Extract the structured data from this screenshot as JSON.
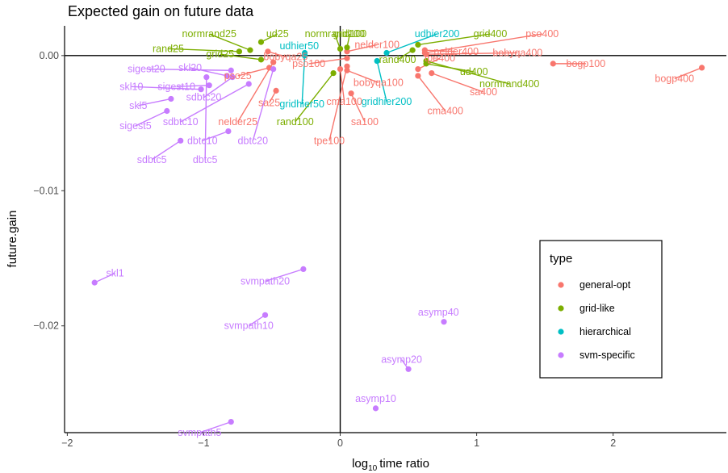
{
  "chart_data": {
    "type": "scatter",
    "title": "Expected gain on future data",
    "xlabel": "time ratio",
    "xlabel_prefix": "log",
    "xlabel_subscript": "10",
    "ylabel": "future.gain",
    "xlim": [
      -2.02,
      2.83
    ],
    "ylim": [
      -0.0279,
      0.0022
    ],
    "x_ticks": [
      -2,
      -1,
      0,
      1,
      2
    ],
    "x_tick_labels": [
      "−2",
      "−1",
      "0",
      "1",
      "2"
    ],
    "y_ticks": [
      0.0,
      -0.01,
      -0.02
    ],
    "y_tick_labels": [
      "0.00",
      "−0.01",
      "−0.02"
    ],
    "reference_lines": {
      "x": 0,
      "y": 0
    },
    "colors": {
      "general-opt": "#F8766D",
      "grid-like": "#7CAE00",
      "hierarchical": "#00BFC4",
      "svm-specific": "#C77CFF"
    },
    "legend": {
      "title": "type",
      "position": "right",
      "entries": [
        "general-opt",
        "grid-like",
        "hierarchical",
        "svm-specific"
      ]
    },
    "points": [
      {
        "label": "bogp400",
        "type": "general-opt",
        "x": 2.65,
        "y": -0.0009,
        "lx": 2.45,
        "ly": -0.0017
      },
      {
        "label": "bogp100",
        "type": "general-opt",
        "x": 1.56,
        "y": -0.0006,
        "lx": 1.8,
        "ly": -0.0006
      },
      {
        "label": "pso400",
        "type": "general-opt",
        "x": 0.62,
        "y": 0.0002,
        "lx": 1.48,
        "ly": 0.0016
      },
      {
        "label": "bobyqa400",
        "type": "general-opt",
        "x": 0.63,
        "y": 0.0001,
        "lx": 1.3,
        "ly": 0.0002
      },
      {
        "label": "nelder400",
        "type": "general-opt",
        "x": 0.62,
        "y": 0.0004,
        "lx": 0.85,
        "ly": 0.0003
      },
      {
        "label": "tpe400",
        "type": "general-opt",
        "x": 0.57,
        "y": -0.001,
        "lx": 0.73,
        "ly": -0.0002
      },
      {
        "label": "sa400",
        "type": "general-opt",
        "x": 0.67,
        "y": -0.0013,
        "lx": 1.05,
        "ly": -0.0027
      },
      {
        "label": "cma400",
        "type": "general-opt",
        "x": 0.57,
        "y": -0.0015,
        "lx": 0.77,
        "ly": -0.0041
      },
      {
        "label": "pso100",
        "type": "general-opt",
        "x": 0.05,
        "y": -0.0002,
        "lx": -0.23,
        "ly": -0.0006
      },
      {
        "label": "nelder100",
        "type": "general-opt",
        "x": 0.05,
        "y": 0.0003,
        "lx": 0.27,
        "ly": 0.0008
      },
      {
        "label": "bobyqa100",
        "type": "general-opt",
        "x": 0.05,
        "y": -0.0011,
        "lx": 0.28,
        "ly": -0.002
      },
      {
        "label": "sa100",
        "type": "general-opt",
        "x": 0.08,
        "y": -0.0028,
        "lx": 0.18,
        "ly": -0.0049
      },
      {
        "label": "cma100",
        "type": "general-opt",
        "x": 0.0,
        "y": -0.001,
        "lx": 0.03,
        "ly": -0.0034
      },
      {
        "label": "tpe100",
        "type": "general-opt",
        "x": 0.05,
        "y": -0.0008,
        "lx": -0.08,
        "ly": -0.0063
      },
      {
        "label": "bobyqa25",
        "type": "general-opt",
        "x": -0.53,
        "y": 0.0003,
        "lx": -0.4,
        "ly": -0.0001
      },
      {
        "label": "sa25",
        "type": "general-opt",
        "x": -0.47,
        "y": -0.0026,
        "lx": -0.52,
        "ly": -0.0035
      },
      {
        "label": "pso25",
        "type": "general-opt",
        "x": -0.52,
        "y": -0.0009,
        "lx": -0.75,
        "ly": -0.0015
      },
      {
        "label": "nelder25",
        "type": "general-opt",
        "x": -0.49,
        "y": -0.0005,
        "lx": -0.75,
        "ly": -0.0049
      },
      {
        "label": "normrand400",
        "type": "grid-like",
        "x": 0.63,
        "y": -0.0004,
        "lx": 1.24,
        "ly": -0.0021
      },
      {
        "label": "ud400",
        "type": "grid-like",
        "x": 0.63,
        "y": -0.0006,
        "lx": 0.98,
        "ly": -0.0012
      },
      {
        "label": "grid400",
        "type": "grid-like",
        "x": 0.57,
        "y": 0.0008,
        "lx": 1.1,
        "ly": 0.0016
      },
      {
        "label": "rand400",
        "type": "grid-like",
        "x": 0.53,
        "y": 0.0004,
        "lx": 0.42,
        "ly": -0.0003
      },
      {
        "label": "grid100",
        "type": "grid-like",
        "x": 0.05,
        "y": 0.0006,
        "lx": 0.07,
        "ly": 0.0016
      },
      {
        "label": "normrand100",
        "type": "grid-like",
        "x": 0.0,
        "y": 0.0005,
        "lx": -0.04,
        "ly": 0.0016
      },
      {
        "label": "rand100",
        "type": "grid-like",
        "x": -0.05,
        "y": -0.0013,
        "lx": -0.33,
        "ly": -0.0049
      },
      {
        "label": "ud25",
        "type": "grid-like",
        "x": -0.58,
        "y": 0.001,
        "lx": -0.46,
        "ly": 0.0016
      },
      {
        "label": "normrand25",
        "type": "grid-like",
        "x": -0.66,
        "y": 0.0004,
        "lx": -0.96,
        "ly": 0.0016
      },
      {
        "label": "rand25",
        "type": "grid-like",
        "x": -0.74,
        "y": 0.0003,
        "lx": -1.26,
        "ly": 0.0005
      },
      {
        "label": "grid25",
        "type": "grid-like",
        "x": -0.58,
        "y": -0.0003,
        "lx": -0.88,
        "ly": 0.0001
      },
      {
        "label": "udhier200",
        "type": "hierarchical",
        "x": 0.34,
        "y": 0.0002,
        "lx": 0.71,
        "ly": 0.0016
      },
      {
        "label": "udhier50",
        "type": "hierarchical",
        "x": -0.26,
        "y": 0.0002,
        "lx": -0.3,
        "ly": 0.0007
      },
      {
        "label": "gridhier50",
        "type": "hierarchical",
        "x": -0.26,
        "y": 0.0,
        "lx": -0.28,
        "ly": -0.0036
      },
      {
        "label": "gridhier200",
        "type": "hierarchical",
        "x": 0.27,
        "y": -0.0004,
        "lx": 0.34,
        "ly": -0.0034
      },
      {
        "label": "skl1",
        "type": "svm-specific",
        "x": -1.8,
        "y": -0.0168,
        "lx": -1.65,
        "ly": -0.0161
      },
      {
        "label": "sigest20",
        "type": "svm-specific",
        "x": -0.8,
        "y": -0.0011,
        "lx": -1.42,
        "ly": -0.001
      },
      {
        "label": "skl20",
        "type": "svm-specific",
        "x": -0.83,
        "y": -0.0015,
        "lx": -1.1,
        "ly": -0.0009
      },
      {
        "label": "sigest10",
        "type": "svm-specific",
        "x": -0.96,
        "y": -0.0022,
        "lx": -1.2,
        "ly": -0.0023
      },
      {
        "label": "skl10",
        "type": "svm-specific",
        "x": -1.02,
        "y": -0.0025,
        "lx": -1.53,
        "ly": -0.0023
      },
      {
        "label": "sdbtc20",
        "type": "svm-specific",
        "x": -0.79,
        "y": -0.0016,
        "lx": -1.0,
        "ly": -0.0031
      },
      {
        "label": "skl5",
        "type": "svm-specific",
        "x": -1.24,
        "y": -0.0032,
        "lx": -1.48,
        "ly": -0.0037
      },
      {
        "label": "sdbtc10",
        "type": "svm-specific",
        "x": -0.67,
        "y": -0.0021,
        "lx": -1.17,
        "ly": -0.0049
      },
      {
        "label": "sigest5",
        "type": "svm-specific",
        "x": -1.27,
        "y": -0.0041,
        "lx": -1.5,
        "ly": -0.0052
      },
      {
        "label": "dbtc20",
        "type": "svm-specific",
        "x": -0.49,
        "y": -0.001,
        "lx": -0.64,
        "ly": -0.0063
      },
      {
        "label": "dbtc10",
        "type": "svm-specific",
        "x": -0.82,
        "y": -0.0056,
        "lx": -1.01,
        "ly": -0.0063
      },
      {
        "label": "sdbtc5",
        "type": "svm-specific",
        "x": -1.17,
        "y": -0.0063,
        "lx": -1.38,
        "ly": -0.0077
      },
      {
        "label": "dbtc5",
        "type": "svm-specific",
        "x": -0.98,
        "y": -0.0016,
        "lx": -0.99,
        "ly": -0.0077
      },
      {
        "label": "svmpath20",
        "type": "svm-specific",
        "x": -0.27,
        "y": -0.0158,
        "lx": -0.55,
        "ly": -0.0167
      },
      {
        "label": "svmpath10",
        "type": "svm-specific",
        "x": -0.55,
        "y": -0.0192,
        "lx": -0.67,
        "ly": -0.02
      },
      {
        "label": "svmpath5",
        "type": "svm-specific",
        "x": -0.8,
        "y": -0.0271,
        "lx": -1.03,
        "ly": -0.0279
      },
      {
        "label": "asymp40",
        "type": "svm-specific",
        "x": 0.76,
        "y": -0.0197,
        "lx": 0.72,
        "ly": -0.019
      },
      {
        "label": "asymp20",
        "type": "svm-specific",
        "x": 0.5,
        "y": -0.0232,
        "lx": 0.45,
        "ly": -0.0225
      },
      {
        "label": "asymp10",
        "type": "svm-specific",
        "x": 0.26,
        "y": -0.0261,
        "lx": 0.26,
        "ly": -0.0254
      }
    ]
  }
}
